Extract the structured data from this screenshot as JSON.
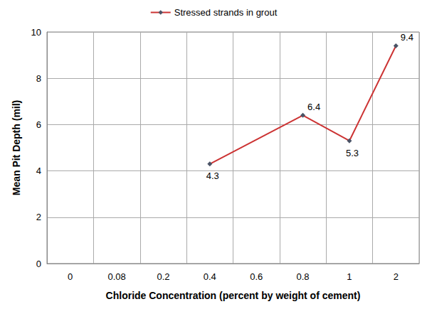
{
  "chart_data": {
    "type": "line",
    "x_label": "Chloride Concentration (percent by weight of cement)",
    "y_label": "Mean Pit Depth (mil)",
    "categories": [
      "0",
      "0.08",
      "0.2",
      "0.4",
      "0.6",
      "0.8",
      "1",
      "2"
    ],
    "series": [
      {
        "name": "Stressed strands in grout",
        "color": "#cc3333",
        "marker": "diamond",
        "line_style": "solid",
        "values": [
          null,
          null,
          null,
          4.3,
          null,
          6.4,
          5.3,
          9.4
        ]
      }
    ],
    "ylim": [
      0,
      10
    ],
    "yticks": [
      0,
      2,
      4,
      6,
      8,
      10
    ],
    "grid": true,
    "legend": "top",
    "data_labels": true
  }
}
